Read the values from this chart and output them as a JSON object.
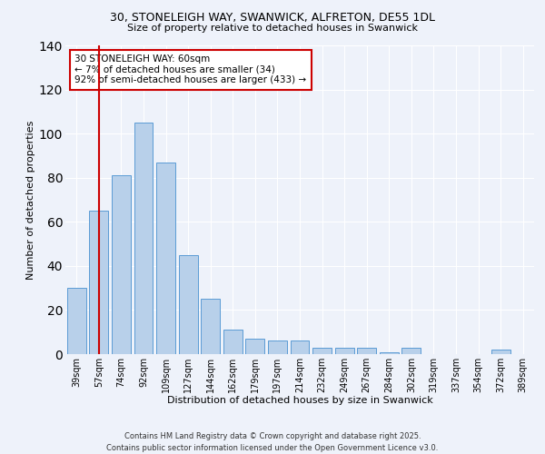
{
  "title1": "30, STONELEIGH WAY, SWANWICK, ALFRETON, DE55 1DL",
  "title2": "Size of property relative to detached houses in Swanwick",
  "xlabel": "Distribution of detached houses by size in Swanwick",
  "ylabel": "Number of detached properties",
  "categories": [
    "39sqm",
    "57sqm",
    "74sqm",
    "92sqm",
    "109sqm",
    "127sqm",
    "144sqm",
    "162sqm",
    "179sqm",
    "197sqm",
    "214sqm",
    "232sqm",
    "249sqm",
    "267sqm",
    "284sqm",
    "302sqm",
    "319sqm",
    "337sqm",
    "354sqm",
    "372sqm",
    "389sqm"
  ],
  "values": [
    30,
    65,
    81,
    105,
    87,
    45,
    25,
    11,
    7,
    6,
    6,
    3,
    3,
    3,
    1,
    3,
    0,
    0,
    0,
    2,
    0
  ],
  "bar_color": "#b8d0ea",
  "bar_edge_color": "#5b9bd5",
  "vline_x": 1,
  "annotation_text": "30 STONELEIGH WAY: 60sqm\n← 7% of detached houses are smaller (34)\n92% of semi-detached houses are larger (433) →",
  "annotation_box_facecolor": "#ffffff",
  "annotation_box_edgecolor": "#cc0000",
  "vline_color": "#cc0000",
  "background_color": "#eef2fa",
  "grid_color": "#ffffff",
  "footer": "Contains HM Land Registry data © Crown copyright and database right 2025.\nContains public sector information licensed under the Open Government Licence v3.0.",
  "ylim": [
    0,
    140
  ],
  "yticks": [
    0,
    20,
    40,
    60,
    80,
    100,
    120,
    140
  ]
}
